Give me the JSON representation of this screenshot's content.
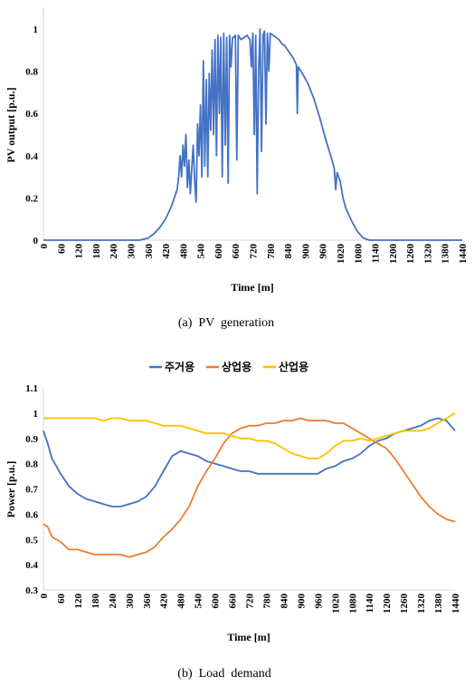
{
  "chart_data": [
    {
      "type": "line",
      "caption": "(a)  PV  generation",
      "xlabel": "Time [m]",
      "ylabel": "PV output [p.u.]",
      "xlim": [
        0,
        1440
      ],
      "ylim": [
        0,
        1
      ],
      "x_ticks": [
        0,
        60,
        120,
        180,
        240,
        300,
        360,
        420,
        480,
        540,
        600,
        660,
        720,
        780,
        840,
        900,
        960,
        1020,
        1080,
        1140,
        1200,
        1260,
        1320,
        1380,
        1440
      ],
      "y_ticks": [
        "0",
        "0.2",
        "0.4",
        "0.6",
        "0.8",
        "1"
      ],
      "grid": false,
      "legend": "none",
      "series": [
        {
          "color": "#4472C4",
          "points": [
            [
              0,
              0
            ],
            [
              330,
              0
            ],
            [
              360,
              0.01
            ],
            [
              380,
              0.03
            ],
            [
              400,
              0.06
            ],
            [
              420,
              0.1
            ],
            [
              440,
              0.16
            ],
            [
              450,
              0.2
            ],
            [
              460,
              0.24
            ],
            [
              465,
              0.3
            ],
            [
              470,
              0.4
            ],
            [
              475,
              0.3
            ],
            [
              480,
              0.45
            ],
            [
              485,
              0.35
            ],
            [
              490,
              0.5
            ],
            [
              495,
              0.25
            ],
            [
              500,
              0.38
            ],
            [
              505,
              0.22
            ],
            [
              510,
              0.34
            ],
            [
              515,
              0.45
            ],
            [
              520,
              0.28
            ],
            [
              525,
              0.18
            ],
            [
              530,
              0.55
            ],
            [
              535,
              0.4
            ],
            [
              540,
              0.64
            ],
            [
              545,
              0.3
            ],
            [
              550,
              0.85
            ],
            [
              555,
              0.35
            ],
            [
              560,
              0.76
            ],
            [
              565,
              0.3
            ],
            [
              570,
              0.79
            ],
            [
              575,
              0.52
            ],
            [
              580,
              0.9
            ],
            [
              585,
              0.5
            ],
            [
              590,
              0.95
            ],
            [
              595,
              0.4
            ],
            [
              600,
              0.97
            ],
            [
              605,
              0.6
            ],
            [
              610,
              0.96
            ],
            [
              615,
              0.3
            ],
            [
              620,
              0.98
            ],
            [
              625,
              0.45
            ],
            [
              630,
              0.96
            ],
            [
              635,
              0.27
            ],
            [
              640,
              0.97
            ],
            [
              645,
              0.82
            ],
            [
              650,
              0.96
            ],
            [
              655,
              0.96
            ],
            [
              660,
              0.97
            ],
            [
              665,
              0.38
            ],
            [
              670,
              0.97
            ],
            [
              675,
              0.96
            ],
            [
              680,
              0.95
            ],
            [
              690,
              0.96
            ],
            [
              700,
              0.97
            ],
            [
              710,
              0.95
            ],
            [
              715,
              0.82
            ],
            [
              720,
              0.98
            ],
            [
              725,
              0.5
            ],
            [
              730,
              0.97
            ],
            [
              735,
              0.22
            ],
            [
              740,
              0.8
            ],
            [
              745,
              1
            ],
            [
              750,
              0.42
            ],
            [
              755,
              0.97
            ],
            [
              760,
              0.99
            ],
            [
              765,
              0.55
            ],
            [
              770,
              0.98
            ],
            [
              775,
              0.8
            ],
            [
              780,
              0.98
            ],
            [
              790,
              0.97
            ],
            [
              800,
              0.96
            ],
            [
              810,
              0.95
            ],
            [
              820,
              0.93
            ],
            [
              830,
              0.92
            ],
            [
              840,
              0.9
            ],
            [
              850,
              0.88
            ],
            [
              860,
              0.86
            ],
            [
              870,
              0.83
            ],
            [
              873,
              0.6
            ],
            [
              876,
              0.82
            ],
            [
              890,
              0.79
            ],
            [
              910,
              0.74
            ],
            [
              930,
              0.67
            ],
            [
              950,
              0.58
            ],
            [
              970,
              0.48
            ],
            [
              990,
              0.39
            ],
            [
              1000,
              0.34
            ],
            [
              1005,
              0.24
            ],
            [
              1010,
              0.32
            ],
            [
              1020,
              0.28
            ],
            [
              1030,
              0.2
            ],
            [
              1040,
              0.15
            ],
            [
              1060,
              0.09
            ],
            [
              1080,
              0.04
            ],
            [
              1100,
              0.01
            ],
            [
              1120,
              0
            ],
            [
              1440,
              0
            ]
          ]
        }
      ]
    },
    {
      "type": "line",
      "caption": "(b)  Load  demand",
      "xlabel": "Time [m]",
      "ylabel": "Power [p.u.]",
      "xlim": [
        0,
        1440
      ],
      "ylim": [
        0.3,
        1.1
      ],
      "x_ticks": [
        0,
        60,
        120,
        180,
        240,
        300,
        360,
        420,
        480,
        540,
        600,
        660,
        720,
        780,
        840,
        900,
        960,
        1020,
        1080,
        1140,
        1200,
        1260,
        1320,
        1380,
        1440
      ],
      "y_ticks": [
        "0.3",
        "0.4",
        "0.5",
        "0.6",
        "0.7",
        "0.8",
        "0.9",
        "1",
        "1.1"
      ],
      "grid": false,
      "legend": "top-center",
      "series": [
        {
          "name": "주거용",
          "color": "#4472C4",
          "points": [
            [
              0,
              0.93
            ],
            [
              15,
              0.88
            ],
            [
              30,
              0.82
            ],
            [
              60,
              0.76
            ],
            [
              90,
              0.71
            ],
            [
              120,
              0.68
            ],
            [
              150,
              0.66
            ],
            [
              180,
              0.65
            ],
            [
              210,
              0.64
            ],
            [
              240,
              0.63
            ],
            [
              270,
              0.63
            ],
            [
              300,
              0.64
            ],
            [
              330,
              0.65
            ],
            [
              360,
              0.67
            ],
            [
              390,
              0.71
            ],
            [
              420,
              0.77
            ],
            [
              450,
              0.83
            ],
            [
              480,
              0.85
            ],
            [
              510,
              0.84
            ],
            [
              540,
              0.83
            ],
            [
              570,
              0.81
            ],
            [
              600,
              0.8
            ],
            [
              630,
              0.79
            ],
            [
              660,
              0.78
            ],
            [
              690,
              0.77
            ],
            [
              720,
              0.77
            ],
            [
              750,
              0.76
            ],
            [
              780,
              0.76
            ],
            [
              810,
              0.76
            ],
            [
              840,
              0.76
            ],
            [
              870,
              0.76
            ],
            [
              900,
              0.76
            ],
            [
              930,
              0.76
            ],
            [
              960,
              0.76
            ],
            [
              990,
              0.78
            ],
            [
              1020,
              0.79
            ],
            [
              1050,
              0.81
            ],
            [
              1080,
              0.82
            ],
            [
              1110,
              0.84
            ],
            [
              1140,
              0.87
            ],
            [
              1170,
              0.89
            ],
            [
              1200,
              0.9
            ],
            [
              1230,
              0.92
            ],
            [
              1260,
              0.93
            ],
            [
              1290,
              0.94
            ],
            [
              1320,
              0.95
            ],
            [
              1350,
              0.97
            ],
            [
              1380,
              0.98
            ],
            [
              1410,
              0.97
            ],
            [
              1440,
              0.93
            ]
          ]
        },
        {
          "name": "상업용",
          "color": "#ED7D31",
          "points": [
            [
              0,
              0.56
            ],
            [
              15,
              0.55
            ],
            [
              30,
              0.51
            ],
            [
              60,
              0.49
            ],
            [
              90,
              0.46
            ],
            [
              120,
              0.46
            ],
            [
              150,
              0.45
            ],
            [
              180,
              0.44
            ],
            [
              210,
              0.44
            ],
            [
              240,
              0.44
            ],
            [
              270,
              0.44
            ],
            [
              300,
              0.43
            ],
            [
              330,
              0.44
            ],
            [
              360,
              0.45
            ],
            [
              390,
              0.47
            ],
            [
              420,
              0.51
            ],
            [
              450,
              0.54
            ],
            [
              480,
              0.58
            ],
            [
              510,
              0.63
            ],
            [
              540,
              0.71
            ],
            [
              570,
              0.77
            ],
            [
              600,
              0.82
            ],
            [
              630,
              0.88
            ],
            [
              660,
              0.92
            ],
            [
              690,
              0.94
            ],
            [
              720,
              0.95
            ],
            [
              750,
              0.95
            ],
            [
              780,
              0.96
            ],
            [
              810,
              0.96
            ],
            [
              840,
              0.97
            ],
            [
              870,
              0.97
            ],
            [
              900,
              0.98
            ],
            [
              930,
              0.97
            ],
            [
              960,
              0.97
            ],
            [
              990,
              0.97
            ],
            [
              1020,
              0.96
            ],
            [
              1050,
              0.96
            ],
            [
              1080,
              0.94
            ],
            [
              1110,
              0.92
            ],
            [
              1140,
              0.9
            ],
            [
              1170,
              0.88
            ],
            [
              1200,
              0.86
            ],
            [
              1230,
              0.82
            ],
            [
              1260,
              0.77
            ],
            [
              1290,
              0.72
            ],
            [
              1320,
              0.67
            ],
            [
              1350,
              0.63
            ],
            [
              1380,
              0.6
            ],
            [
              1410,
              0.58
            ],
            [
              1440,
              0.57
            ]
          ]
        },
        {
          "name": "산업용",
          "color": "#FFC000",
          "points": [
            [
              0,
              0.98
            ],
            [
              30,
              0.98
            ],
            [
              60,
              0.98
            ],
            [
              90,
              0.98
            ],
            [
              120,
              0.98
            ],
            [
              150,
              0.98
            ],
            [
              180,
              0.98
            ],
            [
              210,
              0.97
            ],
            [
              240,
              0.98
            ],
            [
              270,
              0.98
            ],
            [
              300,
              0.97
            ],
            [
              330,
              0.97
            ],
            [
              360,
              0.97
            ],
            [
              390,
              0.96
            ],
            [
              420,
              0.95
            ],
            [
              450,
              0.95
            ],
            [
              480,
              0.95
            ],
            [
              510,
              0.94
            ],
            [
              540,
              0.93
            ],
            [
              570,
              0.92
            ],
            [
              600,
              0.92
            ],
            [
              630,
              0.92
            ],
            [
              660,
              0.91
            ],
            [
              690,
              0.9
            ],
            [
              720,
              0.9
            ],
            [
              750,
              0.89
            ],
            [
              780,
              0.89
            ],
            [
              810,
              0.88
            ],
            [
              840,
              0.86
            ],
            [
              870,
              0.84
            ],
            [
              900,
              0.83
            ],
            [
              930,
              0.82
            ],
            [
              960,
              0.82
            ],
            [
              990,
              0.84
            ],
            [
              1020,
              0.87
            ],
            [
              1050,
              0.89
            ],
            [
              1080,
              0.89
            ],
            [
              1110,
              0.9
            ],
            [
              1140,
              0.89
            ],
            [
              1170,
              0.9
            ],
            [
              1200,
              0.91
            ],
            [
              1230,
              0.92
            ],
            [
              1260,
              0.93
            ],
            [
              1290,
              0.93
            ],
            [
              1320,
              0.93
            ],
            [
              1350,
              0.94
            ],
            [
              1380,
              0.96
            ],
            [
              1410,
              0.98
            ],
            [
              1440,
              1.0
            ]
          ]
        }
      ]
    }
  ]
}
